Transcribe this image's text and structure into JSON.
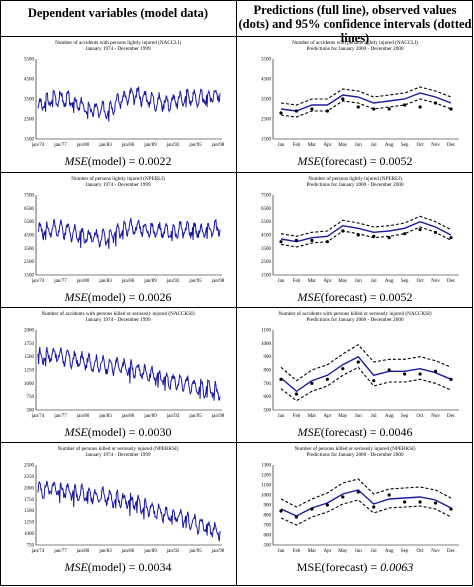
{
  "headers": {
    "left": "Dependent variables (model data)",
    "right": "Predictions (full line), observed values (dots) and 95% confidence intervals (dotted lines)"
  },
  "rows": [
    {
      "left_title": "Number of accidents with persons lightly injured (NACCLI)",
      "left_subtitle": "January 1974 - December 1999",
      "right_title": "Number of accidents with persons lightly injured (NACCLI)",
      "right_subtitle": "Predictions for January 2000 - December 2000",
      "mse_model": {
        "label": "MSE",
        "suffix": "(model) = 0.0022"
      },
      "mse_forecast": {
        "label": "MSE",
        "suffix": "(forecast) = 0.0052"
      }
    },
    {
      "left_title": "Number of persons lightly injured (NPERLI)",
      "left_subtitle": "January 1974 - December 1999",
      "right_title": "Number of persons lightly injured (NPERLI)",
      "right_subtitle": "Predictions for January 2000 - December 2000",
      "mse_model": {
        "label": "MSE",
        "suffix": "(model) = 0.0026"
      },
      "mse_forecast": {
        "label": "MSE",
        "suffix": "(forecast) = 0.0052"
      }
    },
    {
      "left_title": "Number of accidents with persons killed or seriously injured (NACCKSI)",
      "left_subtitle": "January 1974 - December 1999",
      "right_title": "Number of accidents with persons killed or seriously injured (NACCKSI)",
      "right_subtitle": "Predictions for January 2000 - December 2000",
      "mse_model": {
        "label": "MSE",
        "suffix": "(model) = 0.0030"
      },
      "mse_forecast": {
        "label": "MSE",
        "suffix": "(forecast) = 0.0046"
      }
    },
    {
      "left_title": "Number of persons killed or seriously injured (NPERKSI)",
      "left_subtitle": "January 1974 - December 1999",
      "right_title": "Number of persons killed or seriously injured (NPERKSI)",
      "right_subtitle": "Predictions for January 2000 - December 2000",
      "mse_model": {
        "label": "MSE",
        "suffix": "(model) = 0.0034"
      },
      "mse_forecast": {
        "label": "MSE(forecast) = ",
        "suffix": "0.0063"
      }
    }
  ],
  "chart_data": [
    {
      "type": "line",
      "panel": "model",
      "variable": "NACCLI",
      "x_tick_labels": [
        "jan/74",
        "jan/77",
        "jan/80",
        "jan/83",
        "jan/86",
        "jan/89",
        "jan/92",
        "jan/95",
        "jan/98"
      ],
      "y_tick_labels": [
        "1500",
        "2500",
        "3500",
        "4500",
        "5500"
      ],
      "ylim": [
        1500,
        5500
      ],
      "series": [
        {
          "values": [
            3100,
            3600,
            3400,
            3000,
            2900,
            3500,
            3700,
            3400,
            3300,
            3600,
            3500,
            3800
          ]
        }
      ],
      "color": "#1a1aa0"
    },
    {
      "type": "line",
      "panel": "forecast",
      "variable": "NACCLI",
      "categories": [
        "Jan",
        "Feb",
        "Mar",
        "Apr",
        "May",
        "Jun",
        "Jul",
        "Aug",
        "Sep",
        "Oct",
        "Nov",
        "Dec"
      ],
      "y_tick_labels": [
        "1500",
        "2500",
        "3500",
        "4500",
        "5500"
      ],
      "ylim": [
        1500,
        5500
      ],
      "series": [
        {
          "role": "prediction",
          "values": [
            3000,
            2900,
            3200,
            3200,
            3700,
            3600,
            3300,
            3400,
            3500,
            3800,
            3600,
            3300
          ]
        },
        {
          "role": "observed",
          "values": [
            2800,
            2900,
            3000,
            2900,
            3500,
            3100,
            3000,
            3000,
            3200,
            3100,
            3300,
            3000
          ]
        },
        {
          "role": "upper_ci",
          "values": [
            3300,
            3200,
            3500,
            3500,
            4000,
            3900,
            3600,
            3700,
            3800,
            4100,
            3900,
            3600
          ]
        },
        {
          "role": "lower_ci",
          "values": [
            2700,
            2600,
            2900,
            2900,
            3400,
            3300,
            3000,
            3100,
            3200,
            3500,
            3300,
            3000
          ]
        }
      ]
    },
    {
      "type": "line",
      "panel": "model",
      "variable": "NPERLI",
      "x_tick_labels": [
        "jan/74",
        "jan/77",
        "jan/80",
        "jan/83",
        "jan/86",
        "jan/89",
        "jan/92",
        "jan/95",
        "jan/98"
      ],
      "y_tick_labels": [
        "1500",
        "2500",
        "3500",
        "4500",
        "5500",
        "6500",
        "7500"
      ],
      "ylim": [
        1500,
        7500
      ],
      "series": [
        {
          "values": [
            4800,
            5000,
            4700,
            4400,
            4300,
            4900,
            5100,
            4800,
            4700,
            4900,
            4800,
            5100
          ]
        }
      ]
    },
    {
      "type": "line",
      "panel": "forecast",
      "variable": "NPERLI",
      "categories": [
        "Jan",
        "Feb",
        "Mar",
        "Apr",
        "May",
        "Jun",
        "Jul",
        "Aug",
        "Sep",
        "Oct",
        "Nov",
        "Dec"
      ],
      "y_tick_labels": [
        "1500",
        "2500",
        "3500",
        "4500",
        "5500",
        "6500",
        "7500"
      ],
      "ylim": [
        1500,
        7500
      ],
      "series": [
        {
          "role": "prediction",
          "values": [
            4200,
            4000,
            4300,
            4400,
            5200,
            5000,
            4700,
            4800,
            5000,
            5500,
            5100,
            4500
          ]
        },
        {
          "role": "observed",
          "values": [
            4000,
            4100,
            4100,
            4000,
            4800,
            4500,
            4400,
            4300,
            4600,
            4900,
            4700,
            4300
          ]
        },
        {
          "role": "upper_ci",
          "values": [
            4600,
            4400,
            4700,
            4800,
            5600,
            5400,
            5100,
            5200,
            5400,
            5900,
            5500,
            4900
          ]
        },
        {
          "role": "lower_ci",
          "values": [
            3800,
            3600,
            3900,
            4000,
            4800,
            4600,
            4300,
            4400,
            4600,
            5100,
            4700,
            4100
          ]
        }
      ]
    },
    {
      "type": "line",
      "panel": "model",
      "variable": "NACCKSI",
      "x_tick_labels": [
        "jan/74",
        "jan/77",
        "jan/80",
        "jan/83",
        "jan/86",
        "jan/89",
        "jan/92",
        "jan/95",
        "jan/98"
      ],
      "y_tick_labels": [
        "500",
        "750",
        "1000",
        "1250",
        "1500",
        "1750",
        "2000"
      ],
      "ylim": [
        500,
        2000
      ],
      "series": [
        {
          "values": [
            1500,
            1550,
            1450,
            1400,
            1350,
            1300,
            1250,
            1150,
            1050,
            1000,
            900,
            850
          ]
        }
      ]
    },
    {
      "type": "line",
      "panel": "forecast",
      "variable": "NACCKSI",
      "categories": [
        "Jan",
        "Feb",
        "Mar",
        "Apr",
        "May",
        "Jun",
        "Jul",
        "Aug",
        "Sep",
        "Oct",
        "Nov",
        "Dec"
      ],
      "y_tick_labels": [
        "500",
        "600",
        "700",
        "800",
        "900",
        "1000",
        "1100"
      ],
      "ylim": [
        500,
        1100
      ],
      "series": [
        {
          "role": "prediction",
          "values": [
            740,
            640,
            720,
            760,
            840,
            900,
            760,
            790,
            790,
            810,
            780,
            730
          ]
        },
        {
          "role": "observed",
          "values": [
            730,
            620,
            700,
            730,
            810,
            860,
            720,
            800,
            770,
            770,
            790,
            730
          ]
        },
        {
          "role": "upper_ci",
          "values": [
            820,
            720,
            800,
            840,
            920,
            990,
            860,
            880,
            880,
            900,
            870,
            820
          ]
        },
        {
          "role": "lower_ci",
          "values": [
            660,
            570,
            640,
            680,
            760,
            820,
            680,
            710,
            710,
            730,
            700,
            650
          ]
        }
      ]
    },
    {
      "type": "line",
      "panel": "model",
      "variable": "NPERKSI",
      "x_tick_labels": [
        "jan/74",
        "jan/77",
        "jan/80",
        "jan/83",
        "jan/86",
        "jan/89",
        "jan/92",
        "jan/95",
        "jan/98"
      ],
      "y_tick_labels": [
        "750",
        "1000",
        "1250",
        "1500",
        "1750",
        "2000",
        "2250",
        "2500"
      ],
      "ylim": [
        750,
        2500
      ],
      "series": [
        {
          "values": [
            1950,
            2000,
            1900,
            1850,
            1800,
            1750,
            1650,
            1500,
            1400,
            1300,
            1150,
            1050
          ]
        }
      ]
    },
    {
      "type": "line",
      "panel": "forecast",
      "variable": "NPERKSI",
      "categories": [
        "Jan",
        "Feb",
        "Mar",
        "Apr",
        "May",
        "Jun",
        "Jul",
        "Aug",
        "Sep",
        "Oct",
        "Nov",
        "Dec"
      ],
      "y_tick_labels": [
        "500",
        "600",
        "700",
        "800",
        "900",
        "1000",
        "1100",
        "1200",
        "1300"
      ],
      "ylim": [
        500,
        1300
      ],
      "series": [
        {
          "role": "prediction",
          "values": [
            860,
            790,
            870,
            920,
            1010,
            1050,
            910,
            960,
            970,
            980,
            950,
            870
          ]
        },
        {
          "role": "observed",
          "values": [
            840,
            780,
            860,
            900,
            980,
            1030,
            880,
            1000,
            930,
            930,
            920,
            860
          ]
        },
        {
          "role": "upper_ci",
          "values": [
            960,
            880,
            960,
            1020,
            1120,
            1160,
            1010,
            1060,
            1070,
            1080,
            1050,
            970
          ]
        },
        {
          "role": "lower_ci",
          "values": [
            770,
            700,
            780,
            830,
            910,
            950,
            820,
            870,
            880,
            890,
            860,
            780
          ]
        }
      ]
    }
  ]
}
